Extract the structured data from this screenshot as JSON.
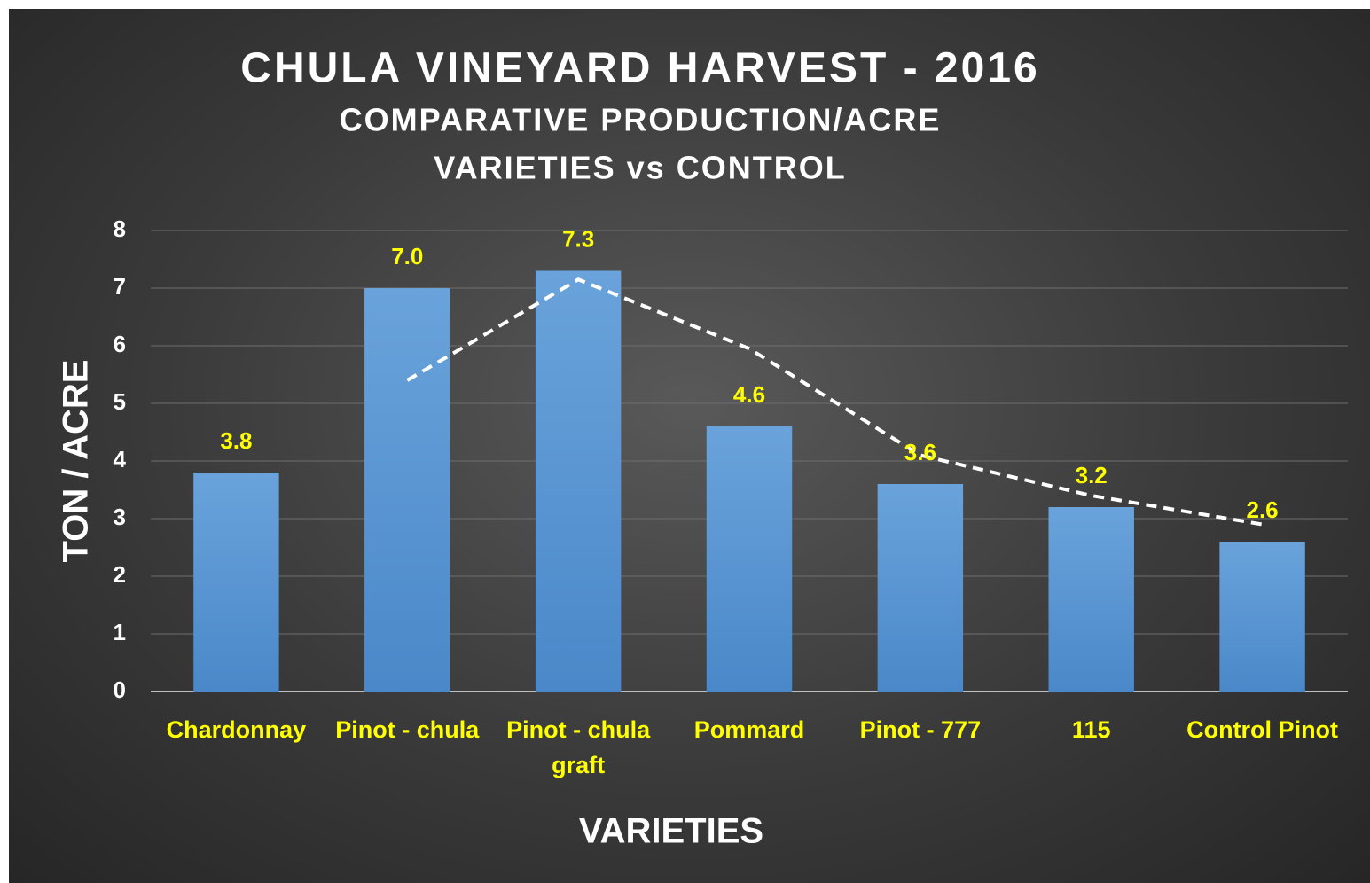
{
  "chart_data": {
    "type": "bar",
    "title": "CHULA VINEYARD HARVEST - 2016",
    "subtitle": [
      "COMPARATIVE PRODUCTION/ACRE",
      "VARIETIES vs CONTROL"
    ],
    "x_label": "VARIETIES",
    "y_label": "TON / ACRE",
    "categories": [
      "Chardonnay",
      "Pinot - chula",
      "Pinot - chula graft",
      "Pommard",
      "Pinot - 777",
      "115",
      "Control Pinot"
    ],
    "values": [
      3.8,
      7,
      7.3,
      4.6,
      3.6,
      3.2,
      2.6
    ],
    "value_labels": [
      "3.8",
      "7.0",
      "7.3",
      "4.6",
      "3.6",
      "3.2",
      "2.6"
    ],
    "color": "#5b9bd5",
    "label_color": "#ffff00",
    "trendline": {
      "values": [
        null,
        5.4,
        7.15,
        5.95,
        4.1,
        3.4,
        2.9
      ],
      "color": "#ffffff",
      "dashed": true
    },
    "ylim": [
      0,
      8
    ],
    "yticks": [
      0,
      1,
      2,
      3,
      4,
      5,
      6,
      7,
      8
    ],
    "grid": true
  }
}
